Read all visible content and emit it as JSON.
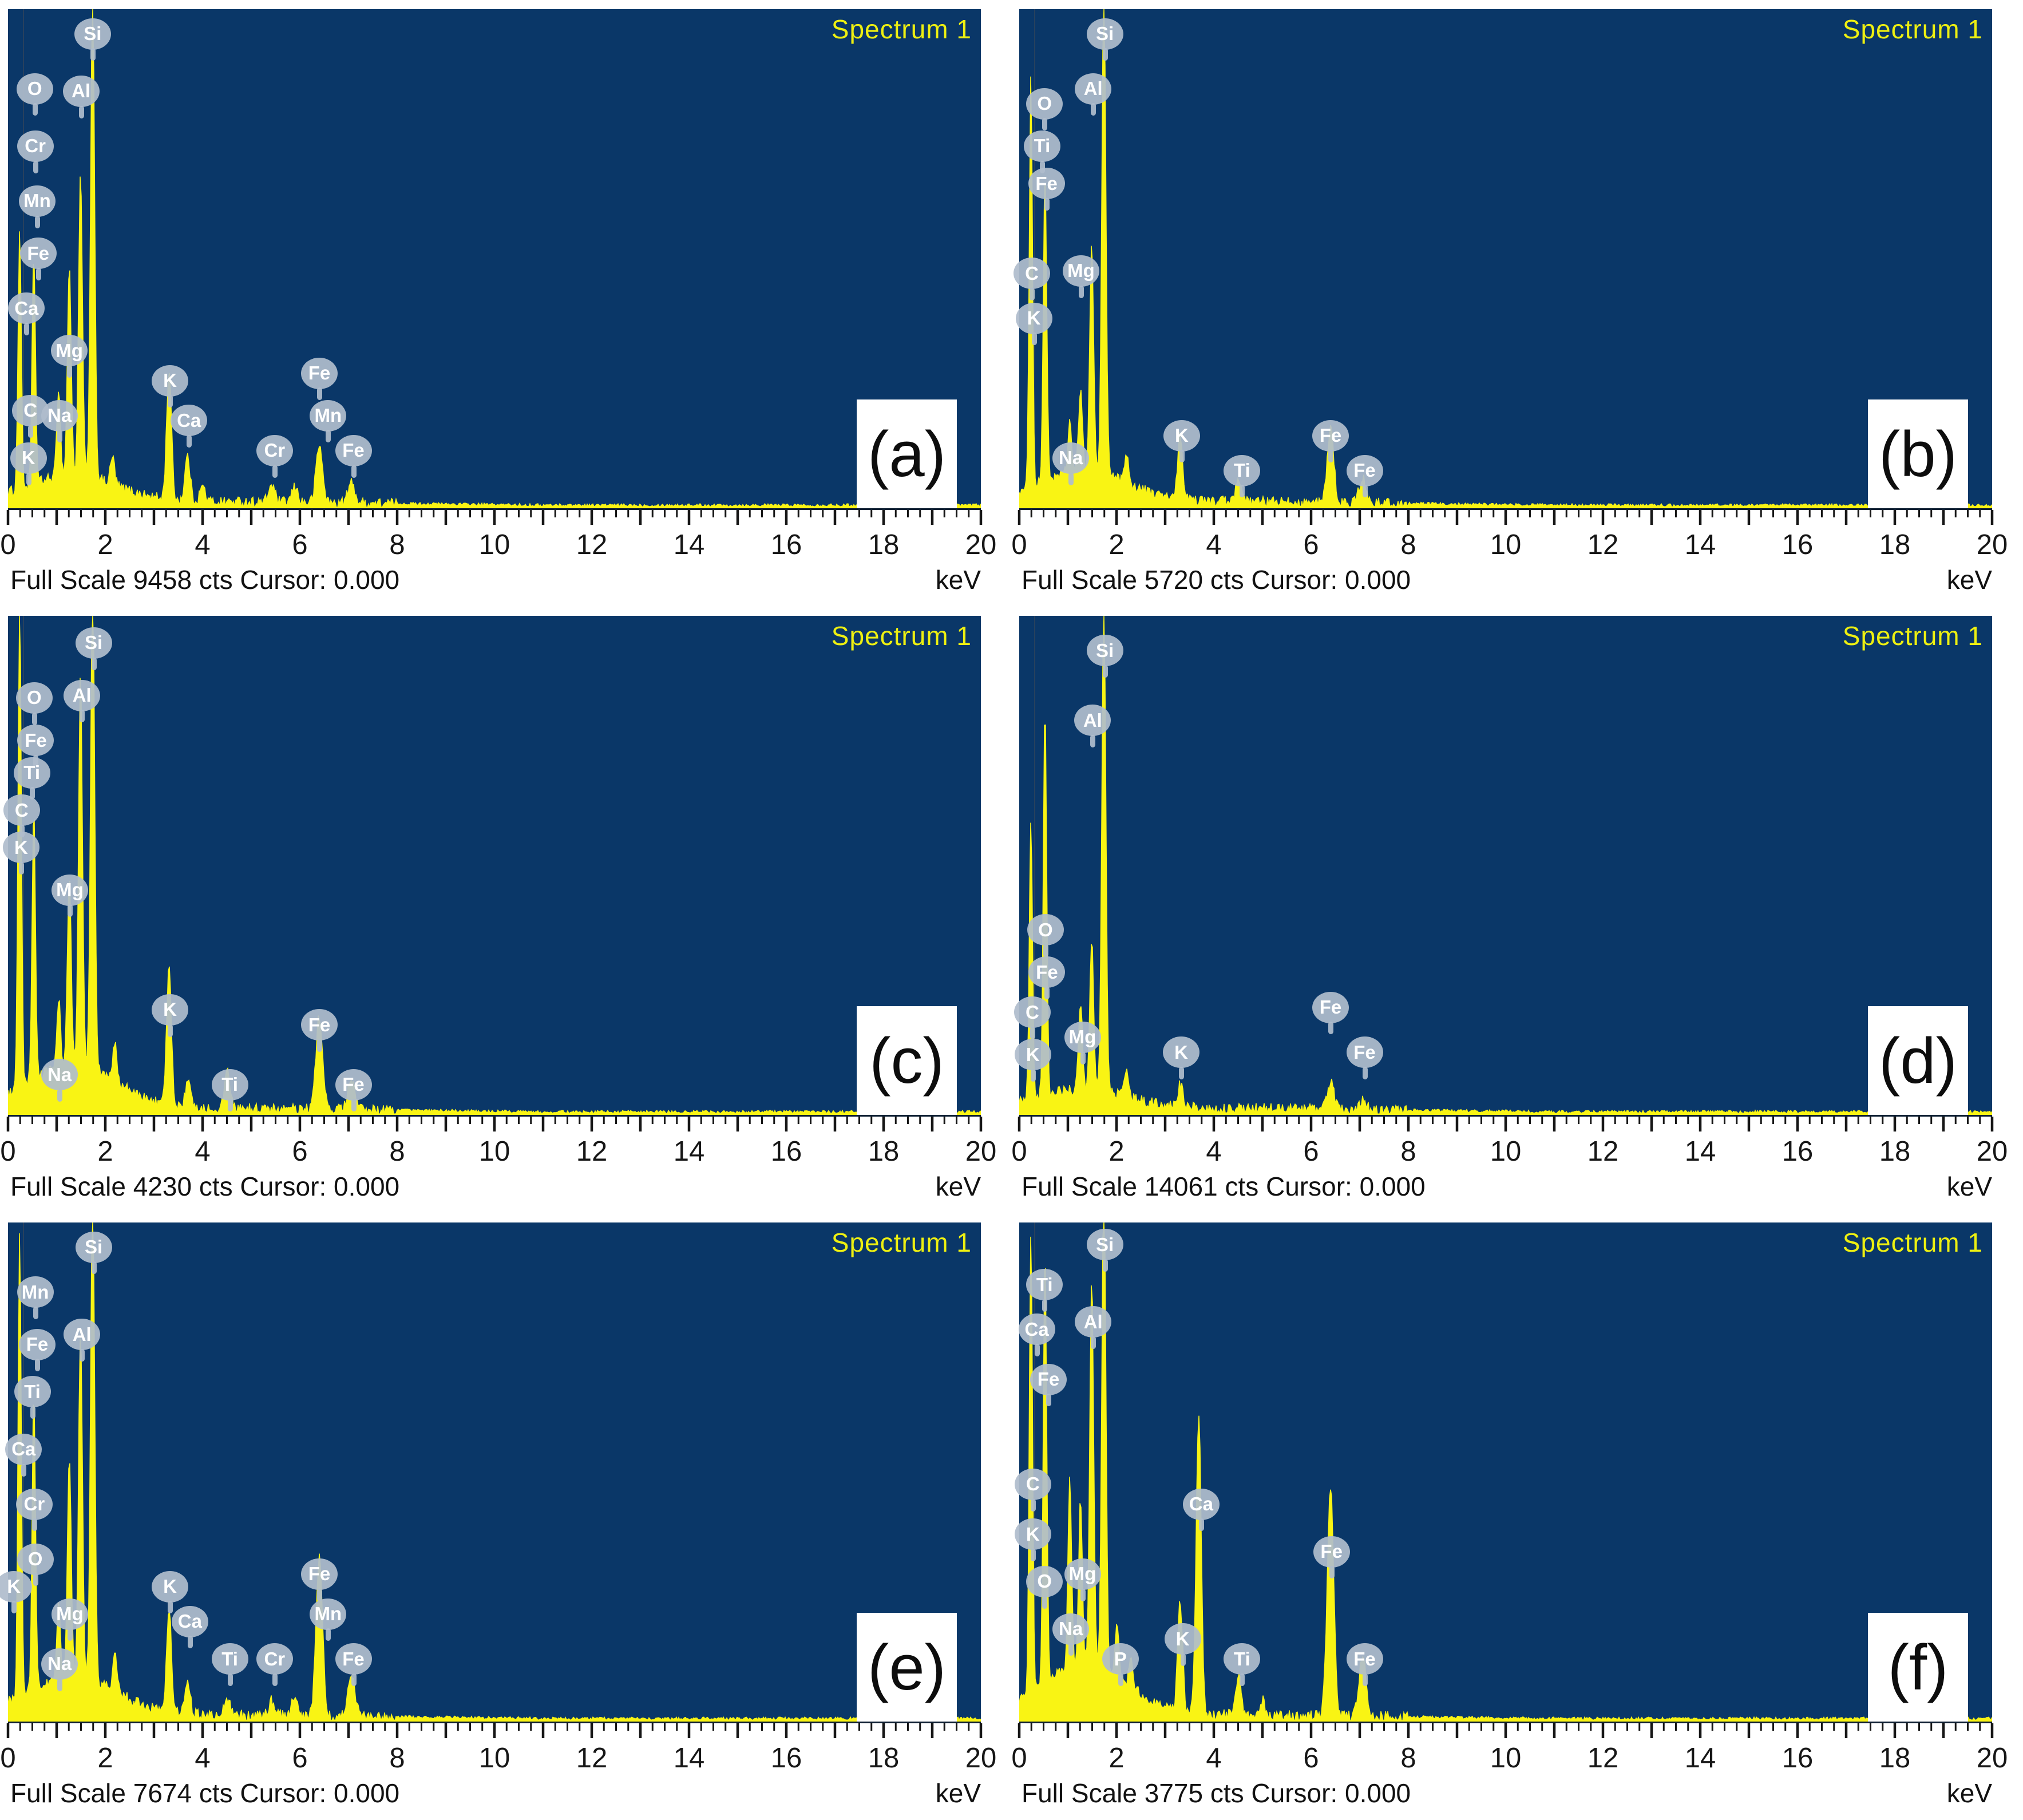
{
  "figure_title": "EDS spectra panels",
  "colors": {
    "plot_background": "#0a3768",
    "trace_yellow": "#f9f414",
    "spectrum_title_yellow": "#eef011",
    "balloon_gray": "#afbccc",
    "axis_black": "#161616",
    "page_white": "#ffffff"
  },
  "chart_data": [
    {
      "id": "a",
      "type": "area",
      "panel_label": "(a)",
      "title": "Spectrum 1",
      "xlabel": "keV",
      "xlim": [
        0,
        20
      ],
      "x_major_ticks": [
        0,
        2,
        4,
        6,
        8,
        10,
        12,
        14,
        16,
        18,
        20
      ],
      "full_scale_cts": 9458,
      "cursor_value": "0.000",
      "status_text": "Full Scale 9458 cts Cursor: 0.000",
      "background_amplitude": 0.05,
      "peaks": [
        {
          "element": "C",
          "keV": 0.24,
          "height": 0.52
        },
        {
          "element": "O",
          "keV": 0.53,
          "height": 0.46
        },
        {
          "element": "Na",
          "keV": 1.04,
          "height": 0.18
        },
        {
          "element": "Mg",
          "keV": 1.26,
          "height": 0.42
        },
        {
          "element": "Al",
          "keV": 1.49,
          "height": 0.6
        },
        {
          "element": "Si",
          "keV": 1.74,
          "height": 0.97
        },
        {
          "element": "",
          "keV": 2.15,
          "height": 0.055
        },
        {
          "element": "K",
          "keV": 3.31,
          "height": 0.26
        },
        {
          "element": "Ca",
          "keV": 3.69,
          "height": 0.09
        },
        {
          "element": "",
          "keV": 4.0,
          "height": 0.03
        },
        {
          "element": "Cr",
          "keV": 5.42,
          "height": 0.035
        },
        {
          "element": "Mn",
          "keV": 5.9,
          "height": 0.03
        },
        {
          "element": "Fe",
          "keV": 6.4,
          "height": 0.115
        },
        {
          "element": "Fe",
          "keV": 7.06,
          "height": 0.04
        }
      ],
      "element_labels": [
        {
          "text": "Si",
          "keV": 1.74,
          "y": 0.05
        },
        {
          "text": "O",
          "keV": 0.55,
          "y": 0.16
        },
        {
          "text": "Al",
          "keV": 1.5,
          "y": 0.165
        },
        {
          "text": "Cr",
          "keV": 0.56,
          "y": 0.275
        },
        {
          "text": "Mn",
          "keV": 0.6,
          "y": 0.385
        },
        {
          "text": "Fe",
          "keV": 0.62,
          "y": 0.49
        },
        {
          "text": "Ca",
          "keV": 0.38,
          "y": 0.6
        },
        {
          "text": "Mg",
          "keV": 1.26,
          "y": 0.685
        },
        {
          "text": "C",
          "keV": 0.46,
          "y": 0.805
        },
        {
          "text": "K",
          "keV": 0.42,
          "y": 0.9
        },
        {
          "text": "Na",
          "keV": 1.06,
          "y": 0.815
        },
        {
          "text": "K",
          "keV": 3.33,
          "y": 0.745
        },
        {
          "text": "Ca",
          "keV": 3.72,
          "y": 0.825
        },
        {
          "text": "Cr",
          "keV": 5.48,
          "y": 0.885
        },
        {
          "text": "Fe",
          "keV": 6.4,
          "y": 0.73
        },
        {
          "text": "Mn",
          "keV": 6.58,
          "y": 0.815
        },
        {
          "text": "Fe",
          "keV": 7.1,
          "y": 0.885
        }
      ]
    },
    {
      "id": "b",
      "type": "area",
      "panel_label": "(b)",
      "title": "Spectrum 1",
      "xlabel": "keV",
      "xlim": [
        0,
        20
      ],
      "x_major_ticks": [
        0,
        2,
        4,
        6,
        8,
        10,
        12,
        14,
        16,
        18,
        20
      ],
      "full_scale_cts": 5720,
      "cursor_value": "0.000",
      "status_text": "Full Scale 5720 cts Cursor: 0.000",
      "background_amplitude": 0.06,
      "peaks": [
        {
          "element": "C",
          "keV": 0.24,
          "height": 0.82
        },
        {
          "element": "O",
          "keV": 0.53,
          "height": 0.62
        },
        {
          "element": "Na",
          "keV": 1.04,
          "height": 0.1
        },
        {
          "element": "Mg",
          "keV": 1.26,
          "height": 0.16
        },
        {
          "element": "Al",
          "keV": 1.49,
          "height": 0.45
        },
        {
          "element": "Si",
          "keV": 1.74,
          "height": 0.97
        },
        {
          "element": "",
          "keV": 2.2,
          "height": 0.055
        },
        {
          "element": "K",
          "keV": 3.31,
          "height": 0.13
        },
        {
          "element": "Ti",
          "keV": 4.51,
          "height": 0.04
        },
        {
          "element": "Fe",
          "keV": 6.4,
          "height": 0.15
        },
        {
          "element": "Fe",
          "keV": 7.06,
          "height": 0.05
        }
      ],
      "element_labels": [
        {
          "text": "Si",
          "keV": 1.76,
          "y": 0.05
        },
        {
          "text": "Al",
          "keV": 1.52,
          "y": 0.16
        },
        {
          "text": "O",
          "keV": 0.52,
          "y": 0.19
        },
        {
          "text": "Ti",
          "keV": 0.47,
          "y": 0.275
        },
        {
          "text": "Fe",
          "keV": 0.56,
          "y": 0.35
        },
        {
          "text": "C",
          "keV": 0.26,
          "y": 0.53
        },
        {
          "text": "Mg",
          "keV": 1.27,
          "y": 0.525
        },
        {
          "text": "K",
          "keV": 0.3,
          "y": 0.62
        },
        {
          "text": "Na",
          "keV": 1.06,
          "y": 0.9
        },
        {
          "text": "K",
          "keV": 3.34,
          "y": 0.855
        },
        {
          "text": "Ti",
          "keV": 4.58,
          "y": 0.925
        },
        {
          "text": "Fe",
          "keV": 6.4,
          "y": 0.855
        },
        {
          "text": "Fe",
          "keV": 7.1,
          "y": 0.925
        }
      ]
    },
    {
      "id": "c",
      "type": "area",
      "panel_label": "(c)",
      "title": "Spectrum 1",
      "xlabel": "keV",
      "xlim": [
        0,
        20
      ],
      "x_major_ticks": [
        0,
        2,
        4,
        6,
        8,
        10,
        12,
        14,
        16,
        18,
        20
      ],
      "full_scale_cts": 4230,
      "cursor_value": "0.000",
      "status_text": "Full Scale 4230 cts Cursor: 0.000",
      "background_amplitude": 0.085,
      "peaks": [
        {
          "element": "C",
          "keV": 0.24,
          "height": 0.99
        },
        {
          "element": "O",
          "keV": 0.53,
          "height": 0.54
        },
        {
          "element": "Na",
          "keV": 1.04,
          "height": 0.14
        },
        {
          "element": "Mg",
          "keV": 1.26,
          "height": 0.38
        },
        {
          "element": "Al",
          "keV": 1.49,
          "height": 0.78
        },
        {
          "element": "Si",
          "keV": 1.74,
          "height": 0.99
        },
        {
          "element": "",
          "keV": 2.2,
          "height": 0.075
        },
        {
          "element": "K",
          "keV": 3.31,
          "height": 0.27
        },
        {
          "element": "",
          "keV": 3.7,
          "height": 0.05
        },
        {
          "element": "Ti",
          "keV": 4.51,
          "height": 0.07
        },
        {
          "element": "Fe",
          "keV": 6.4,
          "height": 0.19
        },
        {
          "element": "Fe",
          "keV": 7.06,
          "height": 0.06
        }
      ],
      "element_labels": [
        {
          "text": "Si",
          "keV": 1.76,
          "y": 0.055
        },
        {
          "text": "O",
          "keV": 0.54,
          "y": 0.165
        },
        {
          "text": "Al",
          "keV": 1.52,
          "y": 0.16
        },
        {
          "text": "Fe",
          "keV": 0.57,
          "y": 0.25
        },
        {
          "text": "Ti",
          "keV": 0.49,
          "y": 0.315
        },
        {
          "text": "C",
          "keV": 0.28,
          "y": 0.39
        },
        {
          "text": "K",
          "keV": 0.27,
          "y": 0.465
        },
        {
          "text": "Mg",
          "keV": 1.27,
          "y": 0.55
        },
        {
          "text": "Na",
          "keV": 1.06,
          "y": 0.92
        },
        {
          "text": "K",
          "keV": 3.33,
          "y": 0.79
        },
        {
          "text": "Ti",
          "keV": 4.56,
          "y": 0.94
        },
        {
          "text": "Fe",
          "keV": 6.4,
          "y": 0.82
        },
        {
          "text": "Fe",
          "keV": 7.1,
          "y": 0.94
        }
      ]
    },
    {
      "id": "d",
      "type": "area",
      "panel_label": "(d)",
      "title": "Spectrum 1",
      "xlabel": "keV",
      "xlim": [
        0,
        20
      ],
      "x_major_ticks": [
        0,
        2,
        4,
        6,
        8,
        10,
        12,
        14,
        16,
        18,
        20
      ],
      "full_scale_cts": 14061,
      "cursor_value": "0.000",
      "status_text": "Full Scale 14061 cts Cursor: 0.000",
      "background_amplitude": 0.035,
      "peaks": [
        {
          "element": "C",
          "keV": 0.24,
          "height": 0.55
        },
        {
          "element": "O",
          "keV": 0.53,
          "height": 0.78
        },
        {
          "element": "Mg",
          "keV": 1.26,
          "height": 0.18
        },
        {
          "element": "Al",
          "keV": 1.49,
          "height": 0.3
        },
        {
          "element": "Si",
          "keV": 1.74,
          "height": 0.99
        },
        {
          "element": "",
          "keV": 2.2,
          "height": 0.05
        },
        {
          "element": "K",
          "keV": 3.31,
          "height": 0.045
        },
        {
          "element": "Fe",
          "keV": 6.4,
          "height": 0.055
        },
        {
          "element": "Fe",
          "keV": 7.06,
          "height": 0.02
        }
      ],
      "element_labels": [
        {
          "text": "Si",
          "keV": 1.76,
          "y": 0.07
        },
        {
          "text": "Al",
          "keV": 1.51,
          "y": 0.21
        },
        {
          "text": "O",
          "keV": 0.54,
          "y": 0.63
        },
        {
          "text": "Fe",
          "keV": 0.57,
          "y": 0.715
        },
        {
          "text": "C",
          "keV": 0.27,
          "y": 0.795
        },
        {
          "text": "K",
          "keV": 0.28,
          "y": 0.88
        },
        {
          "text": "Mg",
          "keV": 1.3,
          "y": 0.845
        },
        {
          "text": "K",
          "keV": 3.33,
          "y": 0.875
        },
        {
          "text": "Fe",
          "keV": 6.4,
          "y": 0.785
        },
        {
          "text": "Fe",
          "keV": 7.1,
          "y": 0.875
        }
      ]
    },
    {
      "id": "e",
      "type": "area",
      "panel_label": "(e)",
      "title": "Spectrum 1",
      "xlabel": "keV",
      "xlim": [
        0,
        20
      ],
      "x_major_ticks": [
        0,
        2,
        4,
        6,
        8,
        10,
        12,
        14,
        16,
        18,
        20
      ],
      "full_scale_cts": 7674,
      "cursor_value": "0.000",
      "status_text": "Full Scale 7674 cts Cursor: 0.000",
      "background_amplitude": 0.075,
      "peaks": [
        {
          "element": "C",
          "keV": 0.24,
          "height": 0.93
        },
        {
          "element": "O",
          "keV": 0.53,
          "height": 0.6
        },
        {
          "element": "Na",
          "keV": 1.04,
          "height": 0.15
        },
        {
          "element": "Mg",
          "keV": 1.26,
          "height": 0.44
        },
        {
          "element": "Al",
          "keV": 1.49,
          "height": 0.7
        },
        {
          "element": "Si",
          "keV": 1.74,
          "height": 0.99
        },
        {
          "element": "",
          "keV": 2.2,
          "height": 0.07
        },
        {
          "element": "K",
          "keV": 3.31,
          "height": 0.21
        },
        {
          "element": "Ca",
          "keV": 3.69,
          "height": 0.07
        },
        {
          "element": "Ti",
          "keV": 4.51,
          "height": 0.035
        },
        {
          "element": "Cr",
          "keV": 5.42,
          "height": 0.03
        },
        {
          "element": "Mn",
          "keV": 5.9,
          "height": 0.04
        },
        {
          "element": "Fe",
          "keV": 6.4,
          "height": 0.32
        },
        {
          "element": "Fe",
          "keV": 7.06,
          "height": 0.09
        }
      ],
      "element_labels": [
        {
          "text": "Si",
          "keV": 1.76,
          "y": 0.05
        },
        {
          "text": "Mn",
          "keV": 0.56,
          "y": 0.14
        },
        {
          "text": "Fe",
          "keV": 0.6,
          "y": 0.245
        },
        {
          "text": "Al",
          "keV": 1.52,
          "y": 0.225
        },
        {
          "text": "Ti",
          "keV": 0.5,
          "y": 0.34
        },
        {
          "text": "Ca",
          "keV": 0.32,
          "y": 0.455
        },
        {
          "text": "Cr",
          "keV": 0.54,
          "y": 0.565
        },
        {
          "text": "O",
          "keV": 0.56,
          "y": 0.675
        },
        {
          "text": "Mg",
          "keV": 1.27,
          "y": 0.785
        },
        {
          "text": "K",
          "keV": 0.12,
          "y": 0.73
        },
        {
          "text": "Na",
          "keV": 1.06,
          "y": 0.885
        },
        {
          "text": "K",
          "keV": 3.33,
          "y": 0.73
        },
        {
          "text": "Ca",
          "keV": 3.74,
          "y": 0.8
        },
        {
          "text": "Ti",
          "keV": 4.56,
          "y": 0.875
        },
        {
          "text": "Cr",
          "keV": 5.48,
          "y": 0.875
        },
        {
          "text": "Fe",
          "keV": 6.4,
          "y": 0.705
        },
        {
          "text": "Mn",
          "keV": 6.58,
          "y": 0.785
        },
        {
          "text": "Fe",
          "keV": 7.1,
          "y": 0.875
        }
      ]
    },
    {
      "id": "f",
      "type": "area",
      "panel_label": "(f)",
      "title": "Spectrum 1",
      "xlabel": "keV",
      "xlim": [
        0,
        20
      ],
      "x_major_ticks": [
        0,
        2,
        4,
        6,
        8,
        10,
        12,
        14,
        16,
        18,
        20
      ],
      "full_scale_cts": 3775,
      "cursor_value": "0.000",
      "status_text": "Full Scale 3775 cts Cursor: 0.000",
      "background_amplitude": 0.1,
      "peaks": [
        {
          "element": "C",
          "keV": 0.24,
          "height": 0.93
        },
        {
          "element": "O",
          "keV": 0.53,
          "height": 0.88
        },
        {
          "element": "Na",
          "keV": 1.04,
          "height": 0.38
        },
        {
          "element": "Mg",
          "keV": 1.26,
          "height": 0.33
        },
        {
          "element": "Al",
          "keV": 1.49,
          "height": 0.78
        },
        {
          "element": "Si",
          "keV": 1.74,
          "height": 0.99
        },
        {
          "element": "P",
          "keV": 2.01,
          "height": 0.1
        },
        {
          "element": "",
          "keV": 2.3,
          "height": 0.05
        },
        {
          "element": "K",
          "keV": 3.31,
          "height": 0.22
        },
        {
          "element": "Ca",
          "keV": 3.69,
          "height": 0.6
        },
        {
          "element": "Ti",
          "keV": 4.51,
          "height": 0.08
        },
        {
          "element": "",
          "keV": 5.0,
          "height": 0.03
        },
        {
          "element": "Fe",
          "keV": 6.4,
          "height": 0.46
        },
        {
          "element": "Fe",
          "keV": 7.06,
          "height": 0.125
        }
      ],
      "element_labels": [
        {
          "text": "Si",
          "keV": 1.76,
          "y": 0.045
        },
        {
          "text": "Ti",
          "keV": 0.52,
          "y": 0.125
        },
        {
          "text": "Ca",
          "keV": 0.36,
          "y": 0.215
        },
        {
          "text": "Al",
          "keV": 1.52,
          "y": 0.2
        },
        {
          "text": "Fe",
          "keV": 0.6,
          "y": 0.315
        },
        {
          "text": "C",
          "keV": 0.28,
          "y": 0.525
        },
        {
          "text": "K",
          "keV": 0.28,
          "y": 0.625
        },
        {
          "text": "O",
          "keV": 0.52,
          "y": 0.72
        },
        {
          "text": "Mg",
          "keV": 1.3,
          "y": 0.705
        },
        {
          "text": "Na",
          "keV": 1.06,
          "y": 0.815
        },
        {
          "text": "P",
          "keV": 2.08,
          "y": 0.875
        },
        {
          "text": "Ca",
          "keV": 3.74,
          "y": 0.565
        },
        {
          "text": "K",
          "keV": 3.36,
          "y": 0.835
        },
        {
          "text": "Ti",
          "keV": 4.58,
          "y": 0.875
        },
        {
          "text": "Fe",
          "keV": 6.42,
          "y": 0.66
        },
        {
          "text": "Fe",
          "keV": 7.1,
          "y": 0.875
        }
      ]
    }
  ]
}
